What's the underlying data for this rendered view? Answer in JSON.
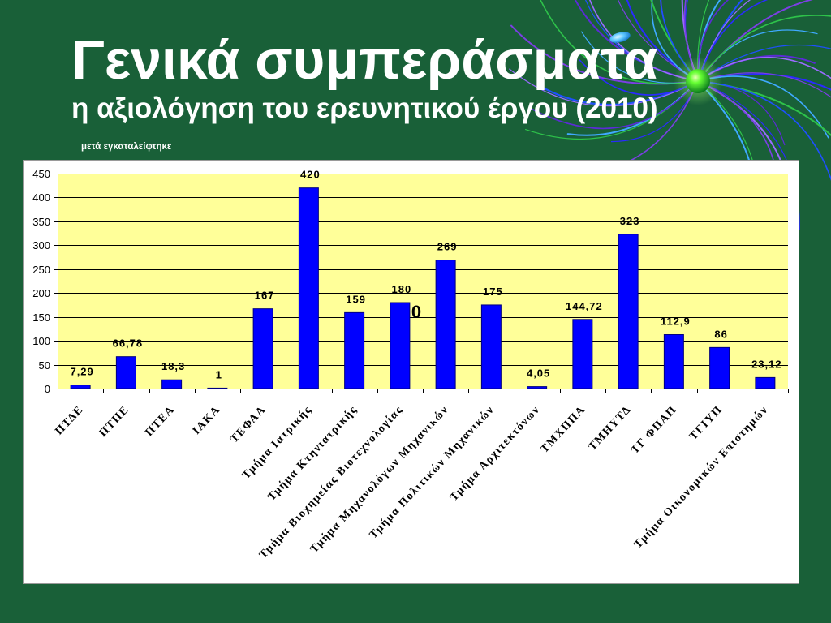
{
  "slide": {
    "title": "Γενικά συμπεράσματα",
    "subtitle": "η αξιολόγηση του ερευνητικού έργου (2010)",
    "note": "μετά εγκαταλείφτηκε"
  },
  "colors": {
    "background": "#196038",
    "text": "#ffffff",
    "chart_background": "#ffffff",
    "plot_area": "#ffff99",
    "bar": "#0000ff",
    "bar_outline": "#000080",
    "gridline": "#000000",
    "ornament": [
      "#2a2aff",
      "#7b3fe4",
      "#3fa9ff",
      "#2ec24a",
      "#5b2bd6",
      "#1e50ff",
      "#9a6bff"
    ]
  },
  "chart_data": {
    "type": "bar",
    "ylim": [
      0,
      450
    ],
    "yticks": [
      0,
      50,
      100,
      150,
      200,
      250,
      300,
      350,
      400,
      450
    ],
    "categories": [
      "ΠΤΔΕ",
      "ΠΤΠΕ",
      "ΠΤΕΑ",
      "ΙΑΚΑ",
      "ΤΕΦΑΑ",
      "Τμήμα Ιατρικής",
      "Τμήμα Κτηνιατρικής",
      "Τμήμα Βιοχημείας Βιοτεχνολογίας",
      "Τμήμα Μηχανολόγων Μηχανικών",
      "Τμήμα Πολιτικών Μηχανικών",
      "Τμήμα Αρχιτεκτόνων",
      "ΤΜΧΠΠΑ",
      "ΤΜΗΥΤΔ",
      "ΤΓ ΦΠΑΠ",
      "ΤΓΙΥΠ",
      "Τμήμα Οικονομικών Επιστημών"
    ],
    "values": [
      7.29,
      66.78,
      18.3,
      1,
      167,
      420,
      159,
      180,
      269,
      175,
      4.05,
      144.72,
      323,
      112.9,
      86,
      23.12
    ],
    "value_labels": [
      "7,29",
      "66,78",
      "18,3",
      "1",
      "167",
      "420",
      "159",
      "180",
      "269",
      "175",
      "4,05",
      "144,72",
      "323",
      "112,9",
      "86",
      "23,12"
    ],
    "grid": true,
    "legend": "none",
    "annotations": [
      {
        "text": "0"
      }
    ]
  }
}
